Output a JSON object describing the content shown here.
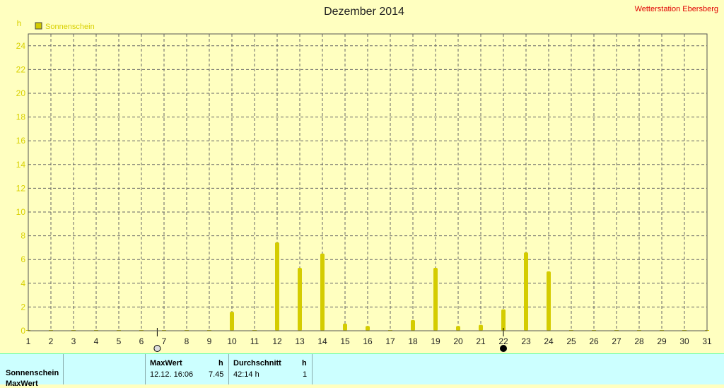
{
  "chart_data": {
    "type": "bar",
    "title": "Dezember 2014",
    "brand": "Wetterstation Ebersberg",
    "ylabel": "h",
    "ylim": [
      0,
      25
    ],
    "yticks": [
      0,
      2,
      4,
      6,
      8,
      10,
      12,
      14,
      16,
      18,
      20,
      22,
      24
    ],
    "grid": true,
    "legend": {
      "position": "top-left",
      "entries": [
        "Sonnenschein"
      ]
    },
    "colors": {
      "series": "#d4cc00",
      "background": "#ffffc0",
      "brand": "#e00000"
    },
    "categories": [
      1,
      2,
      3,
      4,
      5,
      6,
      7,
      8,
      9,
      10,
      11,
      12,
      13,
      14,
      15,
      16,
      17,
      18,
      19,
      20,
      21,
      22,
      23,
      24,
      25,
      26,
      27,
      28,
      29,
      30,
      31
    ],
    "series": [
      {
        "name": "Sonnenschein",
        "values": [
          0,
          0,
          0,
          0,
          0,
          0,
          0,
          0,
          0,
          1.6,
          0,
          7.45,
          5.3,
          6.5,
          0.6,
          0.4,
          0,
          0.9,
          5.3,
          0.4,
          0.5,
          1.8,
          6.6,
          5.0,
          0,
          0,
          0,
          0,
          0,
          0,
          0
        ]
      }
    ],
    "moon_markers": [
      {
        "day": 6.7,
        "phase": "first-quarter"
      },
      {
        "day": 22.0,
        "phase": "new-moon"
      }
    ]
  },
  "table": {
    "row_label": "Sonnenschein",
    "row2_label": "MaxWert",
    "max_header": "MaxWert",
    "max_unit": "h",
    "max_date": "12.12.  16:06",
    "max_value": "7.45",
    "avg_header": "Durchschnitt",
    "avg_unit": "h",
    "avg_total": "42:14 h",
    "avg_value": "1"
  }
}
